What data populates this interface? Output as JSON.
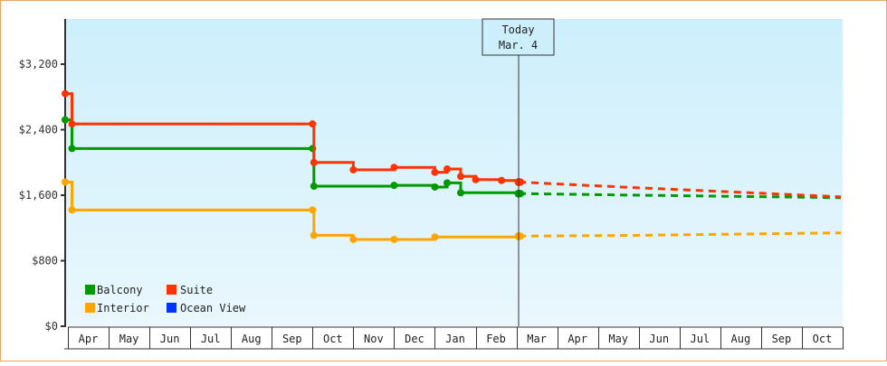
{
  "chart_data": {
    "type": "line",
    "title": "",
    "xlabel": "",
    "ylabel": "",
    "ylim": [
      0,
      3200
    ],
    "y_ticks": [
      "$0",
      "$800",
      "$1,600",
      "$2,400",
      "$3,200"
    ],
    "y_tick_values": [
      0,
      800,
      1600,
      2400,
      3200
    ],
    "x_ticks": [
      "Apr",
      "May",
      "Jun",
      "Jul",
      "Aug",
      "Sep",
      "Oct",
      "Nov",
      "Dec",
      "Jan",
      "Feb",
      "Mar",
      "Apr",
      "May",
      "Jun",
      "Jul",
      "Aug",
      "Sep",
      "Oct"
    ],
    "grid": false,
    "legend_position": "bottom-left inside plot",
    "annotation": {
      "line1": "Today",
      "line2": "Mar. 4"
    },
    "series": [
      {
        "name": "Balcony",
        "color": "#009900",
        "step": true,
        "points": [
          [
            "Apr 1",
            2520
          ],
          [
            "Apr 4",
            2170
          ],
          [
            "Oct 1",
            2170
          ],
          [
            "Oct 2",
            1710
          ],
          [
            "Dec 1",
            1720
          ],
          [
            "Jan 1",
            1700
          ],
          [
            "Jan 10",
            1750
          ],
          [
            "Jan 20",
            1630
          ],
          [
            "Mar 4",
            1620
          ]
        ],
        "projection": [
          [
            "Mar 4",
            1620
          ],
          [
            "Jun 1",
            1600
          ],
          [
            "Oct 31",
            1570
          ]
        ]
      },
      {
        "name": "Suite",
        "color": "#ff3300",
        "step": true,
        "points": [
          [
            "Apr 1",
            2840
          ],
          [
            "Apr 4",
            2470
          ],
          [
            "Oct 1",
            2470
          ],
          [
            "Oct 2",
            2000
          ],
          [
            "Nov 1",
            1910
          ],
          [
            "Dec 1",
            1940
          ],
          [
            "Jan 1",
            1880
          ],
          [
            "Jan 10",
            1920
          ],
          [
            "Jan 20",
            1830
          ],
          [
            "Feb 1",
            1790
          ],
          [
            "Feb 20",
            1780
          ],
          [
            "Mar 4",
            1760
          ]
        ],
        "projection": [
          [
            "Mar 4",
            1760
          ],
          [
            "Jun 1",
            1690
          ],
          [
            "Oct 31",
            1580
          ]
        ]
      },
      {
        "name": "Interior",
        "color": "#ffa500",
        "step": true,
        "points": [
          [
            "Apr 1",
            1760
          ],
          [
            "Apr 4",
            1420
          ],
          [
            "Oct 1",
            1420
          ],
          [
            "Oct 2",
            1110
          ],
          [
            "Nov 1",
            1060
          ],
          [
            "Dec 1",
            1060
          ],
          [
            "Jan 1",
            1090
          ],
          [
            "Mar 4",
            1100
          ]
        ],
        "projection": [
          [
            "Mar 4",
            1100
          ],
          [
            "Jun 1",
            1110
          ],
          [
            "Oct 31",
            1140
          ]
        ]
      },
      {
        "name": "Ocean View",
        "color": "#0033ff",
        "step": true,
        "points": [],
        "projection": []
      }
    ]
  },
  "legend": [
    {
      "label": "Balcony",
      "color": "#009900"
    },
    {
      "label": "Suite",
      "color": "#ff3300"
    },
    {
      "label": "Interior",
      "color": "#ffa500"
    },
    {
      "label": "Ocean View",
      "color": "#0033ff"
    }
  ],
  "today": {
    "line1": "Today",
    "line2": "Mar. 4"
  },
  "axis": {
    "y_labels": [
      "$3,200",
      "$2,400",
      "$1,600",
      "$800",
      "$0"
    ],
    "months": [
      "Apr",
      "May",
      "Jun",
      "Jul",
      "Aug",
      "Sep",
      "Oct",
      "Nov",
      "Dec",
      "Jan",
      "Feb",
      "Mar",
      "Apr",
      "May",
      "Jun",
      "Jul",
      "Aug",
      "Sep",
      "Oct"
    ]
  }
}
